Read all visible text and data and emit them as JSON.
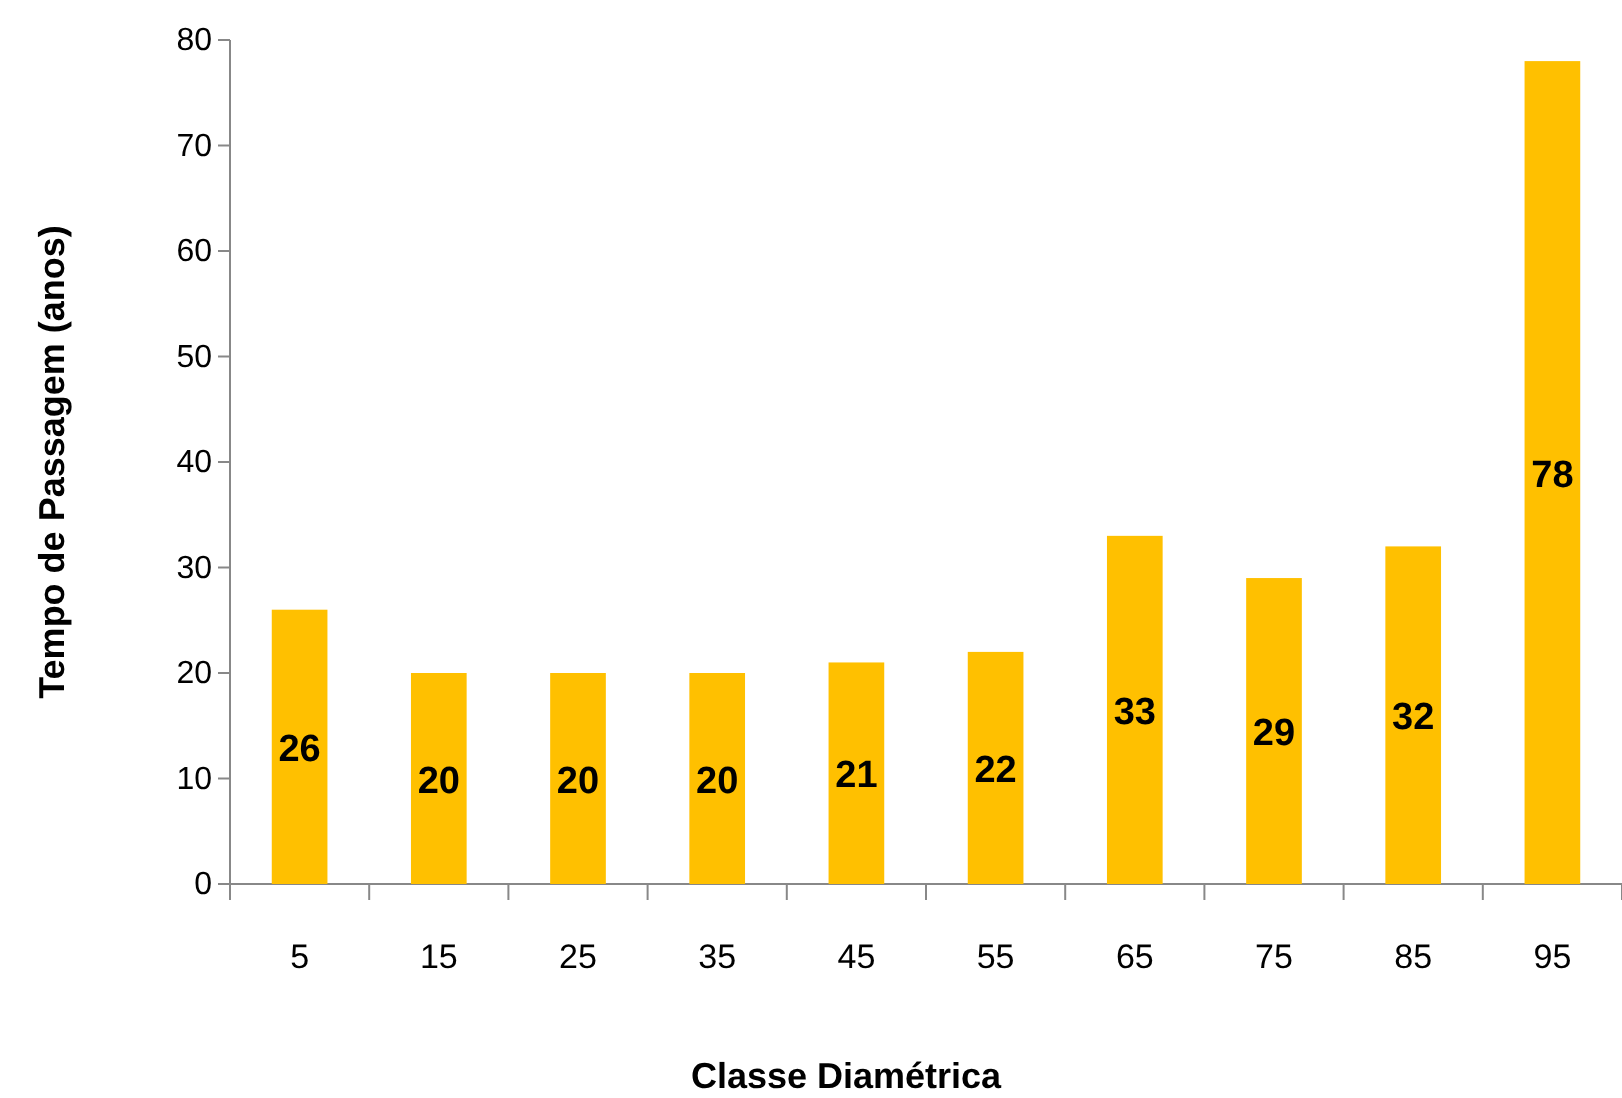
{
  "chart_data": {
    "type": "bar",
    "xlabel": "Classe Diamétrica",
    "ylabel": "Tempo de Passagem  (anos)",
    "categories": [
      "5",
      "15",
      "25",
      "35",
      "45",
      "55",
      "65",
      "75",
      "85",
      "95"
    ],
    "values": [
      26,
      20,
      20,
      20,
      21,
      22,
      33,
      29,
      32,
      78
    ],
    "color": "#ffc000",
    "ylim": [
      0,
      80
    ],
    "yticks": [
      0,
      10,
      20,
      30,
      40,
      50,
      60,
      70,
      80
    ],
    "grid": false,
    "data_labels": true
  }
}
